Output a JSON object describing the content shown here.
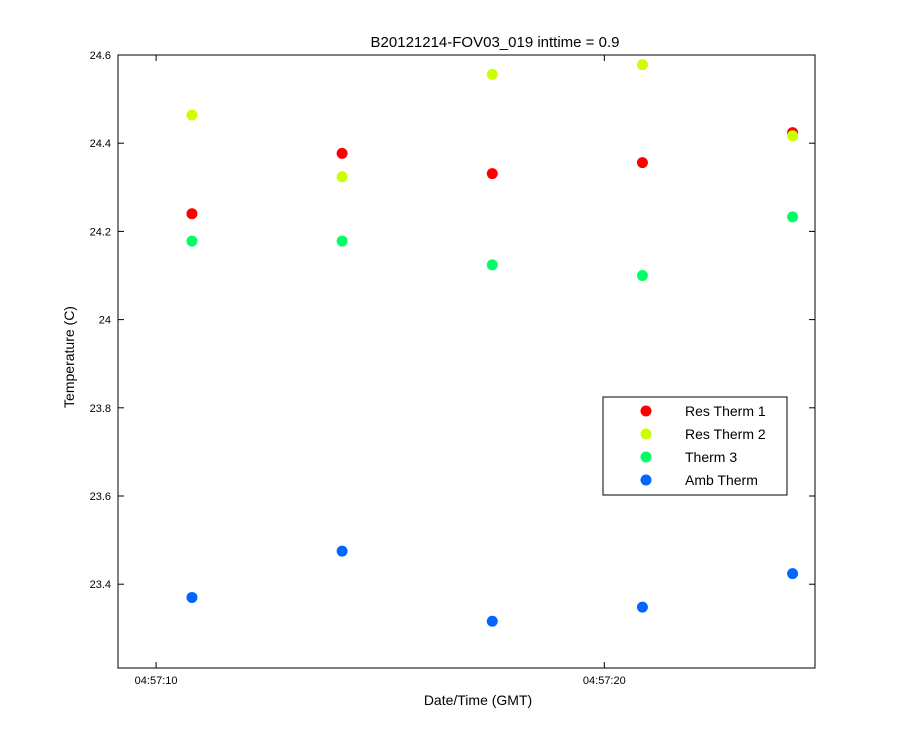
{
  "chart_data": {
    "type": "scatter",
    "title": "B20121214-FOV03_019 inttime = 0.9",
    "xlabel": "Date/Time (GMT)",
    "ylabel": "Temperature (C)",
    "x_axis_type": "time",
    "xlim": [
      "04:57:09.15",
      "04:57:24.7"
    ],
    "ylim": [
      23.21,
      24.6
    ],
    "x_ticks": [
      {
        "value": "04:57:10",
        "label": "04:57:10"
      },
      {
        "value": "04:57:20",
        "label": "04:57:20"
      }
    ],
    "y_ticks": [
      {
        "value": 23.4,
        "label": "23.4"
      },
      {
        "value": 23.6,
        "label": "23.6"
      },
      {
        "value": 23.8,
        "label": "23.8"
      },
      {
        "value": 24.0,
        "label": "24"
      },
      {
        "value": 24.2,
        "label": "24.2"
      },
      {
        "value": 24.4,
        "label": "24.4"
      },
      {
        "value": 24.6,
        "label": "24.6"
      }
    ],
    "grid": false,
    "legend_position": "right",
    "x": [
      "04:57:10.8",
      "04:57:14.15",
      "04:57:17.5",
      "04:57:20.85",
      "04:57:24.2"
    ],
    "series": [
      {
        "name": "Res Therm 1",
        "color": "#ff0000",
        "values": [
          24.24,
          24.377,
          24.331,
          24.356,
          24.424
        ]
      },
      {
        "name": "Res Therm 2",
        "color": "#ccff00",
        "values": [
          24.464,
          24.324,
          24.556,
          24.578,
          24.417
        ]
      },
      {
        "name": "Therm 3",
        "color": "#00ff66",
        "values": [
          24.178,
          24.178,
          24.124,
          24.1,
          24.233
        ]
      },
      {
        "name": "Amb Therm",
        "color": "#0066ff",
        "values": [
          23.37,
          23.475,
          23.316,
          23.348,
          23.424
        ]
      }
    ]
  }
}
